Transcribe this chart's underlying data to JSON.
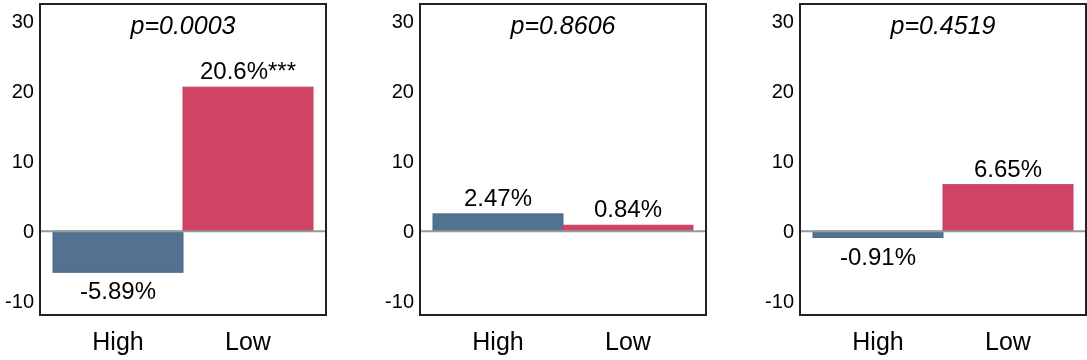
{
  "chart_data": [
    {
      "type": "bar",
      "title": "p=0.0003",
      "categories": [
        "High",
        "Low"
      ],
      "values": [
        -5.89,
        20.6
      ],
      "colors": [
        "#4a6a8b",
        "#cc3a5c"
      ],
      "value_labels": [
        "-5.89%",
        "20.6%***"
      ],
      "ylim": [
        -12,
        32.5
      ],
      "yticks": [
        -10,
        0,
        10,
        20,
        30
      ],
      "ref_lines": [
        {
          "axis": "y",
          "value": 0,
          "color": "#999999"
        }
      ]
    },
    {
      "type": "bar",
      "title": "p=0.8606",
      "categories": [
        "High",
        "Low"
      ],
      "values": [
        2.47,
        0.84
      ],
      "colors": [
        "#4a6a8b",
        "#cc3a5c"
      ],
      "value_labels": [
        "2.47%",
        "0.84%"
      ],
      "ylim": [
        -12,
        32.5
      ],
      "yticks": [
        -10,
        0,
        10,
        20,
        30
      ],
      "ref_lines": [
        {
          "axis": "y",
          "value": 0,
          "color": "#999999"
        }
      ]
    },
    {
      "type": "bar",
      "title": "p=0.4519",
      "categories": [
        "High",
        "Low"
      ],
      "values": [
        -0.91,
        6.65
      ],
      "colors": [
        "#4a6a8b",
        "#cc3a5c"
      ],
      "value_labels": [
        "-0.91%",
        "6.65%"
      ],
      "ylim": [
        -12,
        32.5
      ],
      "yticks": [
        -10,
        0,
        10,
        20,
        30
      ],
      "ref_lines": [
        {
          "axis": "y",
          "value": 0,
          "color": "#999999"
        }
      ]
    }
  ]
}
